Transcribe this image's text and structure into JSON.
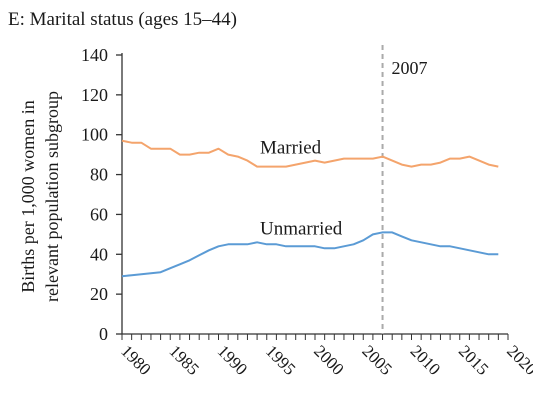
{
  "panel": {
    "title": "E: Marital status (ages 15–44)"
  },
  "chart_data": {
    "type": "line",
    "title": "E: Marital status (ages 15–44)",
    "xlabel": "",
    "ylabel_lines": [
      "Births per 1,000 women in",
      "relevant population subgroup"
    ],
    "xlim": [
      1980,
      2020
    ],
    "ylim": [
      0,
      140
    ],
    "yticks": [
      0,
      20,
      40,
      60,
      80,
      100,
      120,
      140
    ],
    "xticks": [
      1980,
      1985,
      1990,
      1995,
      2000,
      2005,
      2010,
      2015,
      2020
    ],
    "grid": false,
    "marker": {
      "x": 2007,
      "label": "2007",
      "color": "#aaaaaa"
    },
    "series": [
      {
        "name": "Married",
        "color": "#f4a46c",
        "x": [
          1980,
          1981,
          1982,
          1983,
          1984,
          1985,
          1986,
          1987,
          1988,
          1989,
          1990,
          1991,
          1992,
          1993,
          1994,
          1995,
          1996,
          1997,
          1998,
          1999,
          2000,
          2001,
          2002,
          2003,
          2004,
          2005,
          2006,
          2007,
          2008,
          2009,
          2010,
          2011,
          2012,
          2013,
          2014,
          2015,
          2016,
          2017,
          2018,
          2019
        ],
        "values": [
          97,
          96,
          96,
          93,
          93,
          93,
          90,
          90,
          91,
          91,
          93,
          90,
          89,
          87,
          84,
          84,
          84,
          84,
          85,
          86,
          87,
          86,
          87,
          88,
          88,
          88,
          88,
          89,
          87,
          85,
          84,
          85,
          85,
          86,
          88,
          88,
          89,
          87,
          85,
          84
        ]
      },
      {
        "name": "Unmarried",
        "color": "#5b9bd5",
        "x": [
          1980,
          1981,
          1982,
          1983,
          1984,
          1985,
          1986,
          1987,
          1988,
          1989,
          1990,
          1991,
          1992,
          1993,
          1994,
          1995,
          1996,
          1997,
          1998,
          1999,
          2000,
          2001,
          2002,
          2003,
          2004,
          2005,
          2006,
          2007,
          2008,
          2009,
          2010,
          2011,
          2012,
          2013,
          2014,
          2015,
          2016,
          2017,
          2018,
          2019
        ],
        "values": [
          29,
          29.5,
          30,
          30.5,
          31,
          33,
          35,
          37,
          39.5,
          42,
          44,
          45,
          45,
          45,
          46,
          45,
          45,
          44,
          44,
          44,
          44,
          43,
          43,
          44,
          45,
          47,
          50,
          51,
          51,
          49,
          47,
          46,
          45,
          44,
          44,
          43,
          42,
          41,
          40,
          40
        ]
      }
    ]
  }
}
